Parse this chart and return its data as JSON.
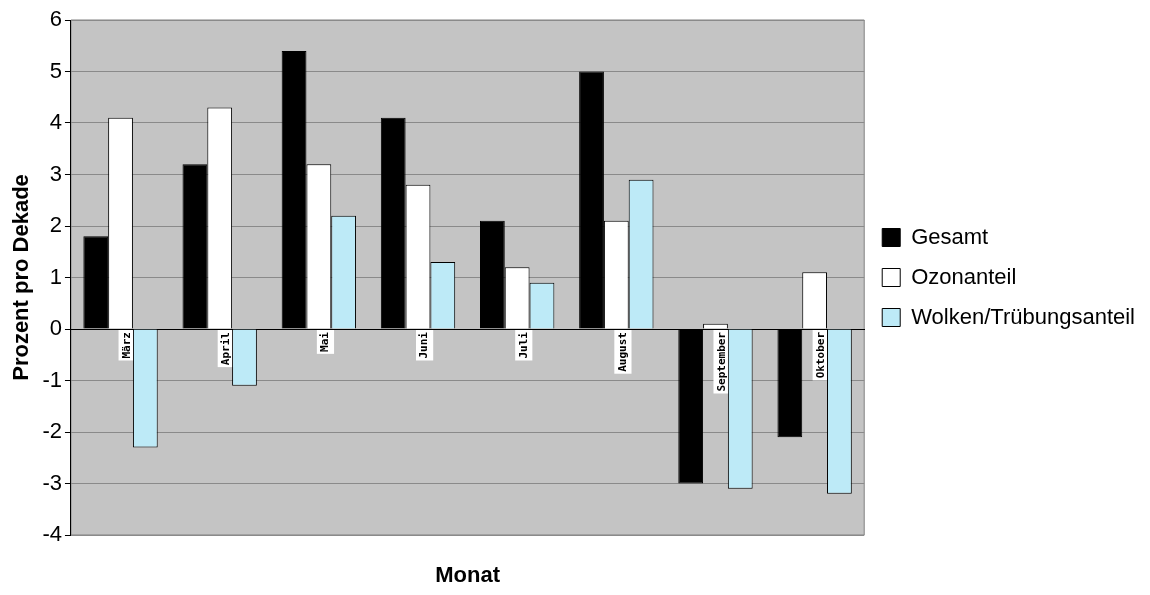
{
  "chart_data": {
    "type": "bar",
    "xlabel": "Monat",
    "ylabel": "Prozent pro Dekade",
    "categories": [
      "März",
      "April",
      "Mai",
      "Juni",
      "Juli",
      "August",
      "September",
      "Oktober"
    ],
    "series": [
      {
        "name": "Gesamt",
        "color": "#000000",
        "values": [
          1.8,
          3.2,
          5.4,
          4.1,
          2.1,
          5.0,
          -3.0,
          -2.1
        ]
      },
      {
        "name": "Ozonanteil",
        "color": "#ffffff",
        "values": [
          4.1,
          4.3,
          3.2,
          2.8,
          1.2,
          2.1,
          0.1,
          1.1
        ]
      },
      {
        "name": "Wolken/Trübungsanteil",
        "color": "#bdeaf7",
        "values": [
          -2.3,
          -1.1,
          2.2,
          1.3,
          0.9,
          2.9,
          -3.1,
          -3.2
        ]
      }
    ],
    "ylim": [
      -4,
      6
    ],
    "yticks": [
      -4,
      -3,
      -2,
      -1,
      0,
      1,
      2,
      3,
      4,
      5,
      6
    ],
    "grid": "y",
    "legend": "right"
  }
}
